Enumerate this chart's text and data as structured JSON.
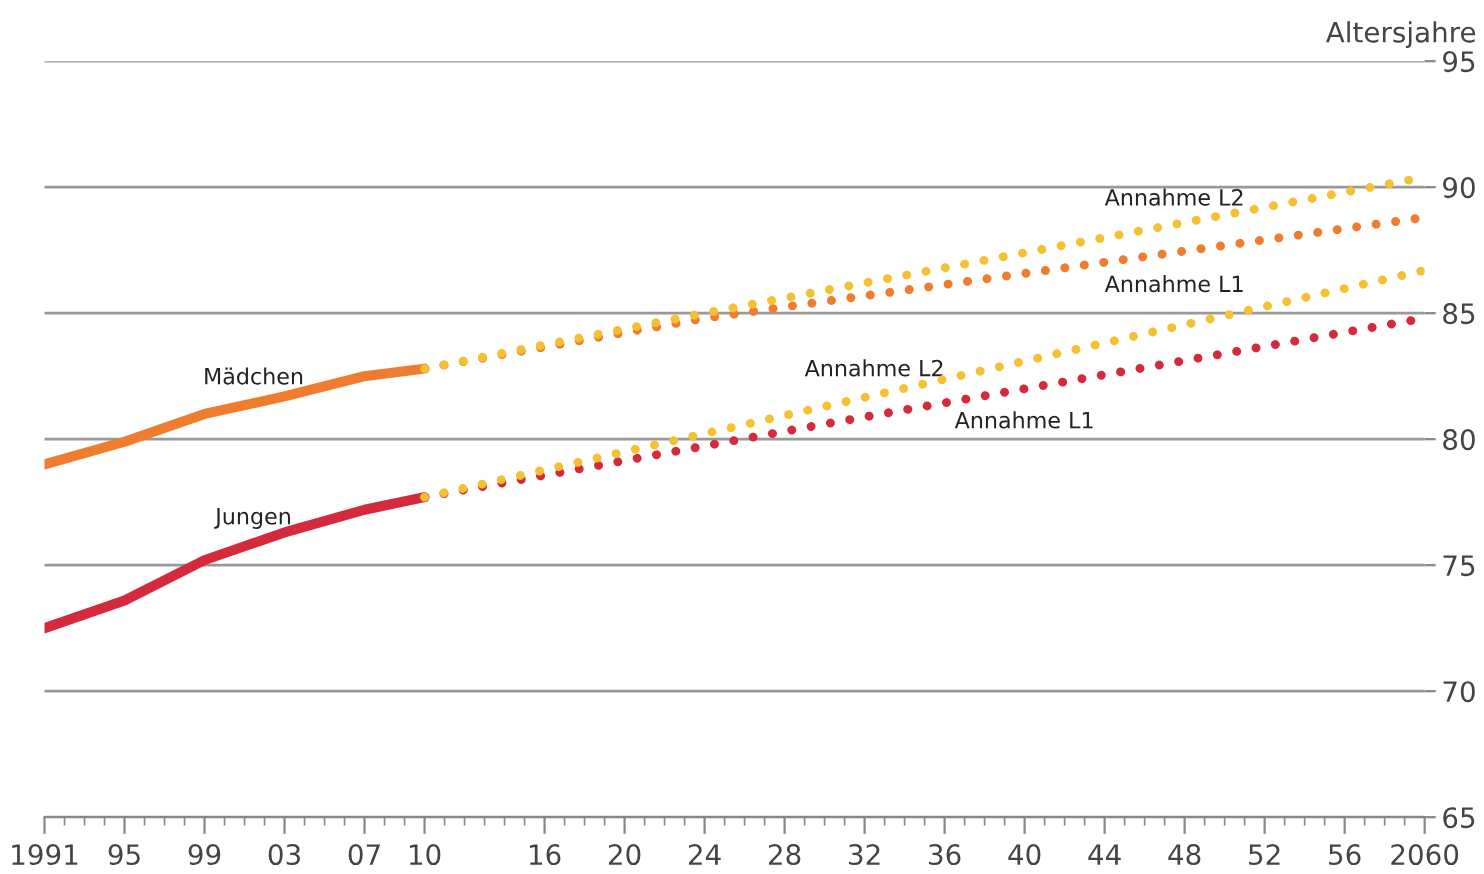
{
  "chart_data": {
    "type": "line",
    "ylabel": "Altersjahre",
    "xlim": [
      1991,
      2060
    ],
    "ylim": [
      65,
      95
    ],
    "yticks": [
      65,
      70,
      75,
      80,
      85,
      90,
      95
    ],
    "xticks": [
      {
        "value": 1991,
        "label": "1991"
      },
      {
        "value": 1995,
        "label": "95"
      },
      {
        "value": 1999,
        "label": "99"
      },
      {
        "value": 2003,
        "label": "03"
      },
      {
        "value": 2007,
        "label": "07"
      },
      {
        "value": 2010,
        "label": "10"
      },
      {
        "value": 2016,
        "label": "16"
      },
      {
        "value": 2020,
        "label": "20"
      },
      {
        "value": 2024,
        "label": "24"
      },
      {
        "value": 2028,
        "label": "28"
      },
      {
        "value": 2032,
        "label": "32"
      },
      {
        "value": 2036,
        "label": "36"
      },
      {
        "value": 2040,
        "label": "40"
      },
      {
        "value": 2044,
        "label": "44"
      },
      {
        "value": 2048,
        "label": "48"
      },
      {
        "value": 2052,
        "label": "52"
      },
      {
        "value": 2056,
        "label": "56"
      },
      {
        "value": 2060,
        "label": "2060"
      }
    ],
    "grid": "y",
    "legend": false,
    "series": [
      {
        "name": "Mädchen",
        "color": "#f07c30",
        "line_style": "solid",
        "x": [
          1991,
          1995,
          1999,
          2003,
          2007,
          2010
        ],
        "values": [
          79.0,
          79.9,
          81.0,
          81.7,
          82.5,
          82.8
        ]
      },
      {
        "name": "Jungen",
        "color": "#d42a3c",
        "line_style": "solid",
        "x": [
          1991,
          1995,
          1999,
          2003,
          2007,
          2010
        ],
        "values": [
          72.5,
          73.6,
          75.2,
          76.3,
          77.2,
          77.7
        ]
      },
      {
        "name": "Annahme L2",
        "color": "#f5c032",
        "line_style": "dotted",
        "x": [
          2010,
          2024,
          2060
        ],
        "values": [
          82.8,
          85.0,
          90.4
        ]
      },
      {
        "name": "Annahme L1",
        "color": "#f07c30",
        "line_style": "dotted",
        "x": [
          2010,
          2024,
          2060
        ],
        "values": [
          82.8,
          84.8,
          88.8
        ]
      },
      {
        "name": "Annahme L2",
        "color": "#f5c032",
        "line_style": "dotted",
        "x": [
          2010,
          2030,
          2060
        ],
        "values": [
          77.7,
          81.3,
          86.7
        ]
      },
      {
        "name": "Annahme L1",
        "color": "#d42a3c",
        "line_style": "dotted",
        "x": [
          2010,
          2030,
          2060
        ],
        "values": [
          77.7,
          80.6,
          84.8
        ]
      }
    ]
  }
}
